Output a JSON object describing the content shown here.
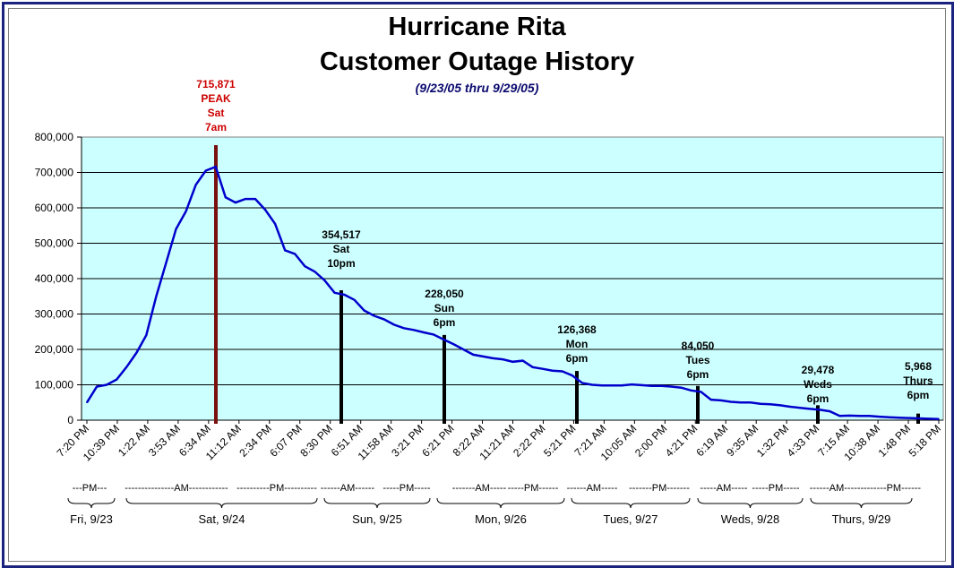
{
  "chart_data": {
    "type": "line",
    "title": "Hurricane Rita",
    "title2": "Customer Outage History",
    "subtitle": "(9/23/05 thru 9/29/05)",
    "ylim": [
      0,
      800000
    ],
    "yticks": [
      "800,000",
      "700,000",
      "600,000",
      "500,000",
      "400,000",
      "300,000",
      "200,000",
      "100,000",
      "0"
    ],
    "xticks": [
      "7:20 PM",
      "10:39 PM",
      "1:22 AM",
      "3:53 AM",
      "6:34 AM",
      "11:12 AM",
      "2:34 PM",
      "6:07 PM",
      "8:30 PM",
      "6:51 AM",
      "11:58 AM",
      "3:21 PM",
      "6:21 PM",
      "8:22 AM",
      "11:21 AM",
      "2:22 PM",
      "5:21 PM",
      "7:21 AM",
      "10:05 AM",
      "2:00 PM",
      "4:21 PM",
      "6:19 AM",
      "9:35 AM",
      "1:32 PM",
      "4:33 PM",
      "7:15 AM",
      "10:38 AM",
      "1:48 PM",
      "5:18 PM"
    ],
    "series": [
      {
        "values": [
          50000,
          95000,
          100000,
          115000,
          150000,
          190000,
          240000,
          350000,
          445000,
          540000,
          590000,
          665000,
          705000,
          715871,
          630000,
          615000,
          625000,
          625000,
          595000,
          555000,
          480000,
          470000,
          435000,
          420000,
          395000,
          360000,
          354517,
          340000,
          310000,
          295000,
          285000,
          270000,
          260000,
          255000,
          248000,
          242000,
          228050,
          215000,
          200000,
          185000,
          180000,
          175000,
          172000,
          165000,
          168000,
          150000,
          145000,
          140000,
          138000,
          126368,
          105000,
          100000,
          98000,
          98000,
          98000,
          101000,
          99000,
          97000,
          97000,
          95000,
          92000,
          84050,
          80000,
          58000,
          56000,
          52000,
          50000,
          50000,
          46000,
          45000,
          42000,
          38000,
          35000,
          32000,
          29478,
          25000,
          12000,
          13000,
          12000,
          12000,
          10000,
          8000,
          7000,
          5968,
          5000,
          4000,
          3000
        ]
      }
    ],
    "markers": [
      {
        "value": "715,871",
        "label": "PEAK",
        "day": "Sat",
        "time": "7am",
        "color": "#7a1010"
      },
      {
        "value": "354,517",
        "day": "Sat",
        "time": "10pm"
      },
      {
        "value": "228,050",
        "day": "Sun",
        "time": "6pm"
      },
      {
        "value": "126,368",
        "day": "Mon",
        "time": "6pm"
      },
      {
        "value": "84,050",
        "day": "Tues",
        "time": "6pm"
      },
      {
        "value": "29,478",
        "day": "Weds",
        "time": "6pm"
      },
      {
        "value": "5,968",
        "day": "Thurs",
        "time": "6pm"
      }
    ],
    "day_groups": [
      {
        "dashes": [
          "---PM---"
        ],
        "label": "Fri, 9/23"
      },
      {
        "dashes": [
          "---------------AM------------",
          "----------PM----------"
        ],
        "label": "Sat, 9/24"
      },
      {
        "dashes": [
          "------AM------",
          "-----PM-----"
        ],
        "label": "Sun, 9/25"
      },
      {
        "dashes": [
          "-------AM-----",
          "-----PM------"
        ],
        "label": "Mon, 9/26"
      },
      {
        "dashes": [
          "------AM-----",
          "-------PM-------"
        ],
        "label": "Tues, 9/27"
      },
      {
        "dashes": [
          "-----AM-----",
          "-----PM-----"
        ],
        "label": "Weds, 9/28"
      },
      {
        "dashes": [
          "------AM------",
          "-------PM------"
        ],
        "label": "Thurs, 9/29"
      }
    ],
    "colors": {
      "plot_bg": "#ccffff",
      "line": "#0000cc",
      "peak_bar": "#7a1010",
      "bar": "#000000",
      "peak_text": "#cc0000",
      "grid": "#000000"
    },
    "grid": true,
    "legend": "none"
  }
}
